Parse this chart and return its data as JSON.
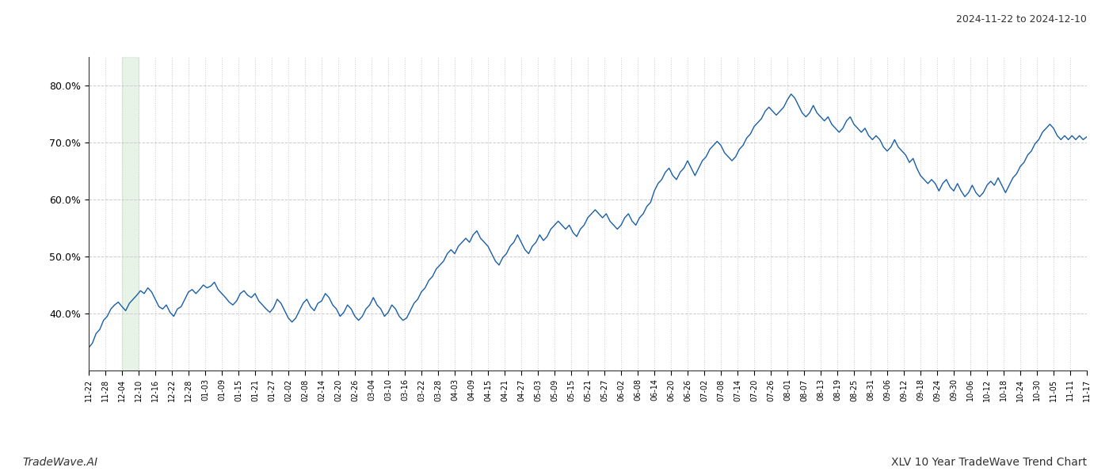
{
  "title_top_right": "2024-11-22 to 2024-12-10",
  "bottom_left": "TradeWave.AI",
  "bottom_right": "XLV 10 Year TradeWave Trend Chart",
  "line_color": "#1a5ea8",
  "shade_color": "#c8e6c9",
  "shade_alpha": 0.45,
  "background_color": "#ffffff",
  "grid_color": "#cccccc",
  "ylim": [
    30,
    85
  ],
  "yticks": [
    40,
    50,
    60,
    70,
    80
  ],
  "x_labels": [
    "11-22",
    "11-28",
    "12-04",
    "12-10",
    "12-16",
    "12-22",
    "12-28",
    "01-03",
    "01-09",
    "01-15",
    "01-21",
    "01-27",
    "02-02",
    "02-08",
    "02-14",
    "02-20",
    "02-26",
    "03-04",
    "03-10",
    "03-16",
    "03-22",
    "03-28",
    "04-03",
    "04-09",
    "04-15",
    "04-21",
    "04-27",
    "05-03",
    "05-09",
    "05-15",
    "05-21",
    "05-27",
    "06-02",
    "06-08",
    "06-14",
    "06-20",
    "06-26",
    "07-02",
    "07-08",
    "07-14",
    "07-20",
    "07-26",
    "08-01",
    "08-07",
    "08-13",
    "08-19",
    "08-25",
    "08-31",
    "09-06",
    "09-12",
    "09-18",
    "09-24",
    "09-30",
    "10-06",
    "10-12",
    "10-18",
    "10-24",
    "10-30",
    "11-05",
    "11-11",
    "11-17"
  ],
  "shade_label_start": "12-04",
  "shade_label_end": "12-10",
  "y_values": [
    34.0,
    34.8,
    36.5,
    37.2,
    38.8,
    39.5,
    40.8,
    41.5,
    42.0,
    41.2,
    40.5,
    41.8,
    42.5,
    43.2,
    44.0,
    43.5,
    44.5,
    43.8,
    42.5,
    41.2,
    40.8,
    41.5,
    40.2,
    39.5,
    40.8,
    41.2,
    42.5,
    43.8,
    44.2,
    43.5,
    44.2,
    45.0,
    44.5,
    44.8,
    45.5,
    44.2,
    43.5,
    42.8,
    42.0,
    41.5,
    42.2,
    43.5,
    44.0,
    43.2,
    42.8,
    43.5,
    42.2,
    41.5,
    40.8,
    40.2,
    41.0,
    42.5,
    41.8,
    40.5,
    39.2,
    38.5,
    39.2,
    40.5,
    41.8,
    42.5,
    41.2,
    40.5,
    41.8,
    42.2,
    43.5,
    42.8,
    41.5,
    40.8,
    39.5,
    40.2,
    41.5,
    40.8,
    39.5,
    38.8,
    39.5,
    40.8,
    41.5,
    42.8,
    41.5,
    40.8,
    39.5,
    40.2,
    41.5,
    40.8,
    39.5,
    38.8,
    39.2,
    40.5,
    41.8,
    42.5,
    43.8,
    44.5,
    45.8,
    46.5,
    47.8,
    48.5,
    49.2,
    50.5,
    51.2,
    50.5,
    51.8,
    52.5,
    53.2,
    52.5,
    53.8,
    54.5,
    53.2,
    52.5,
    51.8,
    50.5,
    49.2,
    48.5,
    49.8,
    50.5,
    51.8,
    52.5,
    53.8,
    52.5,
    51.2,
    50.5,
    51.8,
    52.5,
    53.8,
    52.8,
    53.5,
    54.8,
    55.5,
    56.2,
    55.5,
    54.8,
    55.5,
    54.2,
    53.5,
    54.8,
    55.5,
    56.8,
    57.5,
    58.2,
    57.5,
    56.8,
    57.5,
    56.2,
    55.5,
    54.8,
    55.5,
    56.8,
    57.5,
    56.2,
    55.5,
    56.8,
    57.5,
    58.8,
    59.5,
    61.5,
    62.8,
    63.5,
    64.8,
    65.5,
    64.2,
    63.5,
    64.8,
    65.5,
    66.8,
    65.5,
    64.2,
    65.5,
    66.8,
    67.5,
    68.8,
    69.5,
    70.2,
    69.5,
    68.2,
    67.5,
    66.8,
    67.5,
    68.8,
    69.5,
    70.8,
    71.5,
    72.8,
    73.5,
    74.2,
    75.5,
    76.2,
    75.5,
    74.8,
    75.5,
    76.2,
    77.5,
    78.5,
    77.8,
    76.5,
    75.2,
    74.5,
    75.2,
    76.5,
    75.2,
    74.5,
    73.8,
    74.5,
    73.2,
    72.5,
    71.8,
    72.5,
    73.8,
    74.5,
    73.2,
    72.5,
    71.8,
    72.5,
    71.2,
    70.5,
    71.2,
    70.5,
    69.2,
    68.5,
    69.2,
    70.5,
    69.2,
    68.5,
    67.8,
    66.5,
    67.2,
    65.5,
    64.2,
    63.5,
    62.8,
    63.5,
    62.8,
    61.5,
    62.8,
    63.5,
    62.2,
    61.5,
    62.8,
    61.5,
    60.5,
    61.2,
    62.5,
    61.2,
    60.5,
    61.2,
    62.5,
    63.2,
    62.5,
    63.8,
    62.5,
    61.2,
    62.5,
    63.8,
    64.5,
    65.8,
    66.5,
    67.8,
    68.5,
    69.8,
    70.5,
    71.8,
    72.5,
    73.2,
    72.5,
    71.2,
    70.5,
    71.2,
    70.5,
    71.2,
    70.5,
    71.2,
    70.5,
    71.0
  ]
}
